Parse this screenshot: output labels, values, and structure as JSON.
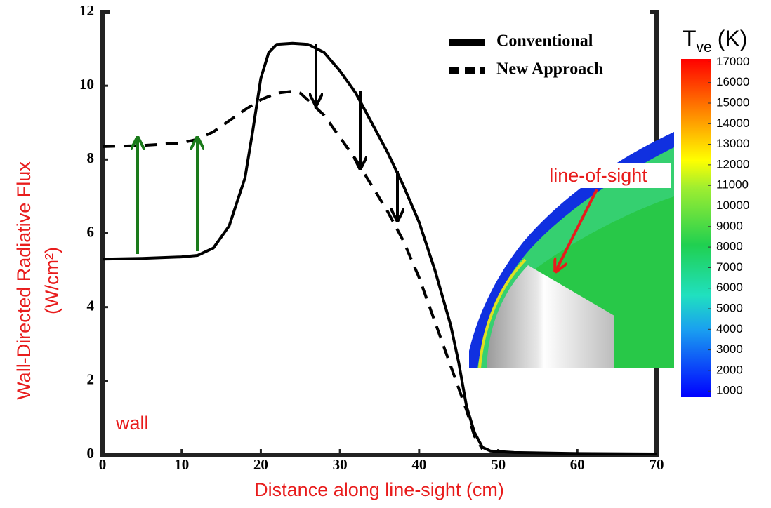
{
  "chart_data": {
    "type": "line",
    "xlabel": "Distance along line-sight (cm)",
    "ylabel": [
      "Wall-Directed Radiative Flux",
      "(W/cm²)"
    ],
    "xlim": [
      0,
      70
    ],
    "ylim": [
      0,
      12
    ],
    "xticks": [
      0,
      10,
      20,
      30,
      40,
      50,
      60,
      70
    ],
    "yticks": [
      0,
      2,
      4,
      6,
      8,
      10,
      12
    ],
    "legend": "upper right",
    "series": [
      {
        "name": "Conventional",
        "color": "#000000",
        "dash": false,
        "x": [
          0,
          5,
          10,
          12,
          14,
          16,
          18,
          19,
          20,
          21,
          22,
          24,
          26,
          28,
          30,
          32,
          34,
          36,
          38,
          40,
          42,
          44,
          45,
          46,
          47,
          48,
          49,
          52,
          60,
          70
        ],
        "values": [
          5.3,
          5.32,
          5.36,
          5.4,
          5.6,
          6.2,
          7.5,
          8.8,
          10.2,
          10.9,
          11.12,
          11.15,
          11.12,
          10.9,
          10.4,
          9.8,
          9.0,
          8.2,
          7.3,
          6.3,
          5.0,
          3.5,
          2.5,
          1.3,
          0.6,
          0.2,
          0.1,
          0.06,
          0.03,
          0.02
        ]
      },
      {
        "name": "New Approach",
        "color": "#000000",
        "dash": true,
        "x": [
          0,
          5,
          10,
          12,
          14,
          16,
          18,
          20,
          22,
          24,
          25,
          26,
          28,
          30,
          32,
          34,
          36,
          38,
          40,
          42,
          44,
          46,
          47,
          48
        ],
        "values": [
          8.35,
          8.38,
          8.45,
          8.55,
          8.75,
          9.05,
          9.35,
          9.62,
          9.8,
          9.85,
          9.8,
          9.6,
          9.2,
          8.6,
          8.0,
          7.3,
          6.6,
          5.8,
          4.8,
          3.6,
          2.4,
          1.2,
          0.5,
          0.15
        ]
      }
    ],
    "annotations": [
      "wall",
      "line-of-sight"
    ],
    "colorbar": {
      "title": "T",
      "title_subscript": "ve",
      "title_unit": "(K)",
      "lim": [
        700,
        17150
      ],
      "ticks": [
        1000,
        2000,
        3000,
        4000,
        5000,
        6000,
        7000,
        8000,
        9000,
        10000,
        11000,
        12000,
        13000,
        14000,
        15000,
        16000,
        17000
      ]
    }
  }
}
